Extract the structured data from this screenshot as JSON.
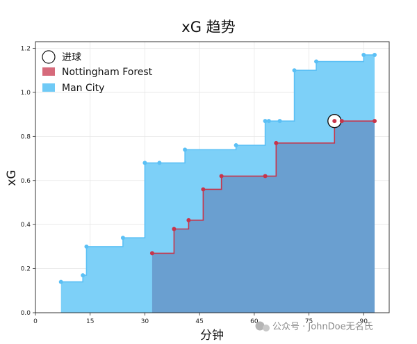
{
  "chart_data": {
    "type": "area",
    "title": "xG 趋势",
    "xlabel": "分钟",
    "ylabel": "xG",
    "xlim": [
      0,
      97
    ],
    "ylim": [
      0,
      1.23
    ],
    "xticks": [
      0,
      15,
      30,
      45,
      60,
      75,
      90
    ],
    "yticks": [
      0.0,
      0.2,
      0.4,
      0.6,
      0.8,
      1.0,
      1.2
    ],
    "grid": true,
    "legend_position": "top-left",
    "series": [
      {
        "name": "Man City",
        "color": "#5bc0f5",
        "fill": "#7dd0f8",
        "x": [
          7,
          13,
          14,
          24,
          30,
          34,
          41,
          55,
          63,
          64,
          67,
          71,
          77,
          90,
          93
        ],
        "y": [
          0.14,
          0.17,
          0.3,
          0.34,
          0.68,
          0.68,
          0.74,
          0.76,
          0.87,
          0.87,
          0.87,
          1.1,
          1.14,
          1.17,
          1.17
        ]
      },
      {
        "name": "Nottingham Forest",
        "color": "#c8344a",
        "fill": "#6a9fd0",
        "x": [
          32,
          38,
          42,
          46,
          51,
          63,
          66,
          82,
          84,
          93
        ],
        "y": [
          0.27,
          0.38,
          0.42,
          0.56,
          0.62,
          0.62,
          0.77,
          0.87,
          0.87,
          0.87
        ]
      }
    ],
    "goals": [
      {
        "series": "Nottingham Forest",
        "x": 82,
        "y": 0.87
      }
    ]
  },
  "legend": {
    "goal_label": "进球",
    "forest_label": "Nottingham Forest",
    "city_label": "Man City"
  },
  "watermark": "公众号 · JohnDoe无名氏"
}
